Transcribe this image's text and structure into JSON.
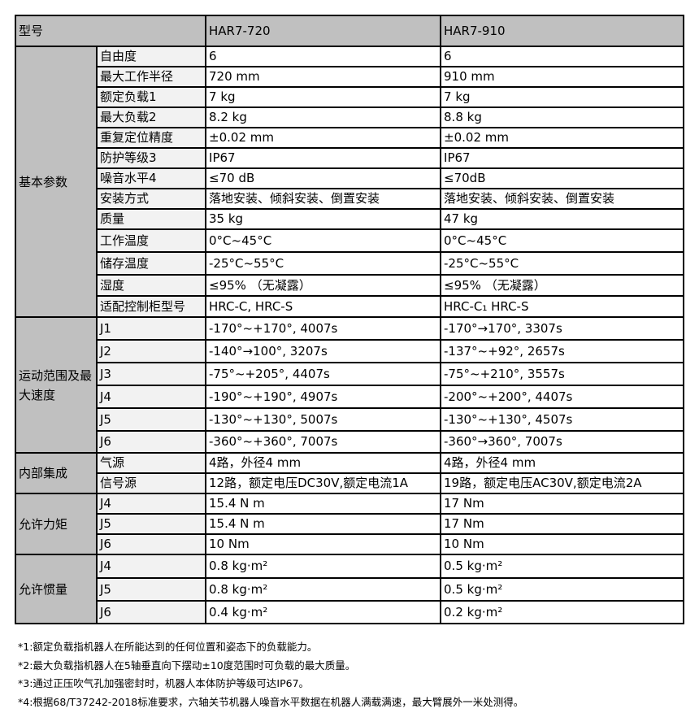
{
  "header": {
    "label": "型号",
    "models": [
      "HAR7-720",
      "HAR7-910"
    ]
  },
  "groups": [
    {
      "name": "基本参数",
      "rows": [
        {
          "label": "自由度",
          "values": [
            "6",
            "6"
          ]
        },
        {
          "label": "最大工作半径",
          "values": [
            "720 mm",
            "910 mm"
          ]
        },
        {
          "label": "额定负载1",
          "values": [
            "7 kg",
            "7 kg"
          ]
        },
        {
          "label": "最大负载2",
          "values": [
            "8.2 kg",
            "8.8 kg"
          ]
        },
        {
          "label": "重复定位精度",
          "values": [
            "±0.02 mm",
            "±0.02 mm"
          ]
        },
        {
          "label": "防护等级3",
          "values": [
            "IP67",
            "IP67"
          ]
        },
        {
          "label": "噪音水平4",
          "values": [
            "≤70 dB",
            "≤70dB"
          ]
        },
        {
          "label": "安装方式",
          "values": [
            "落地安装、倾斜安装、倒置安装",
            "落地安装、倾斜安装、倒置安装"
          ]
        },
        {
          "label": "质量",
          "values": [
            "35 kg",
            "47 kg"
          ]
        },
        {
          "label": "工作温度",
          "values": [
            "0°C~45°C",
            "0°C~45°C"
          ]
        },
        {
          "label": "储存温度",
          "values": [
            "-25°C~55°C",
            "-25°C~55°C"
          ]
        },
        {
          "label": "湿度",
          "values": [
            "≤95% （无凝露）",
            "≤95% （无凝露）"
          ]
        },
        {
          "label": "适配控制柜型号",
          "values": [
            "HRC-C, HRC-S",
            "HRC-C₁ HRC-S"
          ]
        }
      ]
    },
    {
      "name": "运动范围及最大速度",
      "rows": [
        {
          "label": "J1",
          "values": [
            "-170°~+170°, 4007s",
            "-170°→170°, 3307s"
          ]
        },
        {
          "label": "J2",
          "values": [
            "-140°→100°, 3207s",
            "-137°~+92°, 2657s"
          ]
        },
        {
          "label": "J3",
          "values": [
            "-75°~+205°, 4407s",
            "-75°~+210°, 3557s"
          ]
        },
        {
          "label": "J4",
          "values": [
            "-190°~+190°, 4907s",
            "-200°~+200°, 4407s"
          ]
        },
        {
          "label": "J5",
          "values": [
            "-130°~+130°, 5007s",
            "-130°~+130°, 4507s"
          ]
        },
        {
          "label": "J6",
          "values": [
            "-360°~+360°, 7007s",
            "-360°→360°, 7007s"
          ]
        }
      ]
    },
    {
      "name": "内部集成",
      "rows": [
        {
          "label": "气源",
          "values": [
            "4路，外径4 mm",
            "4路，外径4 mm"
          ]
        },
        {
          "label": "信号源",
          "values": [
            "12路，额定电压DC30V,额定电流1A",
            "19路，额定电压AC30V,额定电流2A"
          ]
        }
      ]
    },
    {
      "name": "允许力矩",
      "rows": [
        {
          "label": "J4",
          "values": [
            "15.4 N m",
            "17 Nm"
          ]
        },
        {
          "label": "J5",
          "values": [
            "15.4 N m",
            "17 Nm"
          ]
        },
        {
          "label": "J6",
          "values": [
            "10 Nm",
            "10 Nm"
          ]
        }
      ]
    },
    {
      "name": "允许惯量",
      "rows": [
        {
          "label": "J4",
          "values": [
            "0.8 kg·m²",
            "0.5 kg·m²"
          ]
        },
        {
          "label": "J5",
          "values": [
            "0.8 kg·m²",
            "0.5 kg·m²"
          ]
        },
        {
          "label": "J6",
          "values": [
            "0.4 kg·m²",
            "0.2 kg·m²"
          ]
        }
      ]
    }
  ],
  "notes": [
    "*1:额定负载指机器人在所能达到的任何位置和姿态下的负载能力。",
    "*2:最大负载指机器人在5轴垂直向下摆动±10度范围时可负载的最大质量。",
    "*3:通过正压吹气孔加强密封时，机器人本体防护等级可达IP67。",
    "*4:根据68/T37242-2018标准要求，六轴关节机器人噪音水平数据在机器人满载满速，最大臂展外一米处测得。"
  ]
}
